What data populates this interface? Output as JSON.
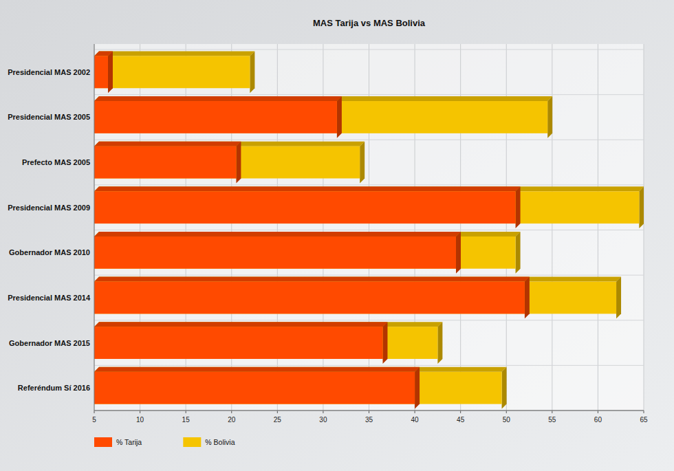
{
  "chart_data": {
    "type": "bar",
    "orientation": "horizontal",
    "title": "MAS Tarija vs MAS Bolivia",
    "categories": [
      "Presidencial MAS 2002",
      "Presidencial MAS 2005",
      "Prefecto MAS 2005",
      "Presidencial MAS 2009",
      "Gobernador MAS 2010",
      "Presidencial MAS 2014",
      "Gobernador MAS 2015",
      "Referéndum Sí 2016"
    ],
    "series": [
      {
        "name": "% Tarija",
        "color": "#ff4a00",
        "values": [
          6.5,
          31.5,
          20.5,
          51,
          44.5,
          52,
          36.5,
          40
        ]
      },
      {
        "name": "% Bolivia",
        "color": "#f5c400",
        "values": [
          22,
          54.5,
          34,
          64.5,
          51,
          62,
          42.5,
          49.5
        ]
      }
    ],
    "xlim": [
      5,
      65
    ],
    "xticks": [
      5,
      10,
      15,
      20,
      25,
      30,
      35,
      40,
      45,
      50,
      55,
      60,
      65
    ],
    "grid": true,
    "legend": "bottom-left"
  }
}
